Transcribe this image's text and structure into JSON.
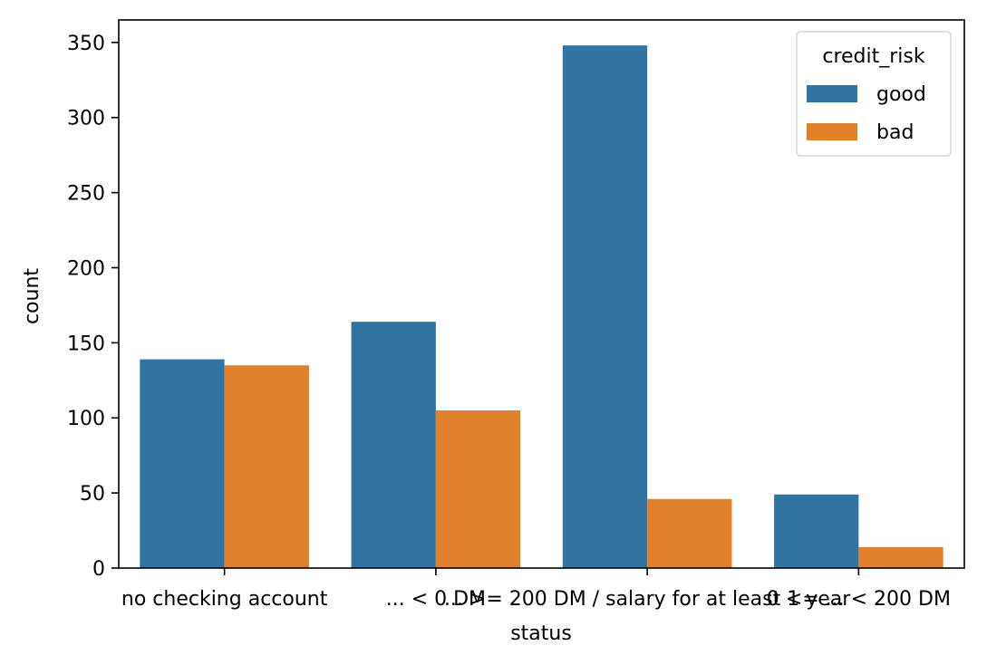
{
  "chart_data": {
    "type": "bar",
    "categories": [
      "no checking account",
      "... < 0 DM",
      "... >= 200 DM / salary for at least 1 year",
      "0 <= ... < 200 DM"
    ],
    "series": [
      {
        "name": "good",
        "values": [
          139,
          164,
          348,
          49
        ],
        "color": "#3274a1"
      },
      {
        "name": "bad",
        "values": [
          135,
          105,
          46,
          14
        ],
        "color": "#e1812c"
      }
    ],
    "xlabel": "status",
    "ylabel": "count",
    "ylim": [
      0,
      365
    ],
    "yticks": [
      0,
      50,
      100,
      150,
      200,
      250,
      300,
      350
    ],
    "legend": {
      "title": "credit_risk",
      "placement": "top-right"
    },
    "grid": false
  }
}
